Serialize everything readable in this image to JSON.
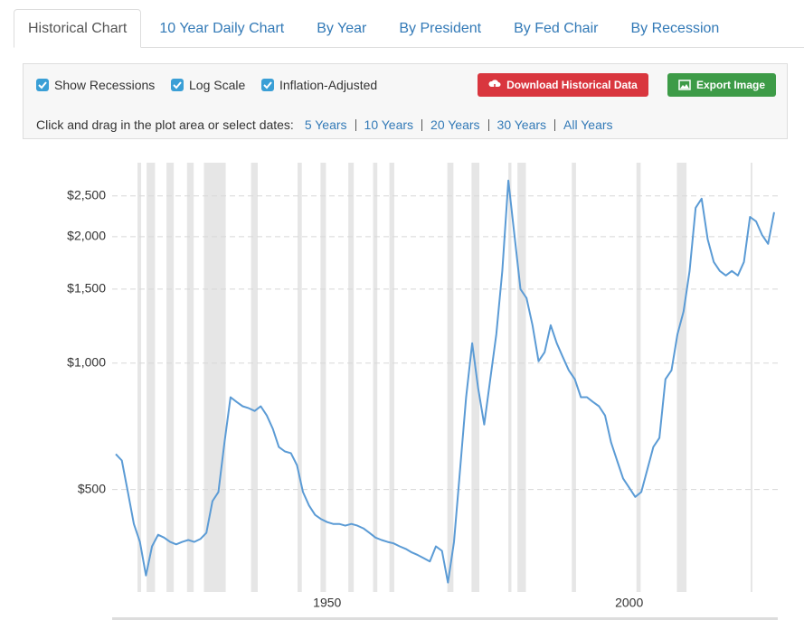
{
  "tabs": [
    "Historical Chart",
    "10 Year Daily Chart",
    "By Year",
    "By President",
    "By Fed Chair",
    "By Recession"
  ],
  "active_tab": 0,
  "options": [
    {
      "label": "Show Recessions",
      "checked": true
    },
    {
      "label": "Log Scale",
      "checked": true
    },
    {
      "label": "Inflation-Adjusted",
      "checked": true
    }
  ],
  "buttons": {
    "download": "Download Historical Data",
    "export": "Export Image"
  },
  "date_prompt": "Click and drag in the plot area or select dates:",
  "date_ranges": [
    "5 Years",
    "10 Years",
    "20 Years",
    "30 Years",
    "All Years"
  ],
  "chart_data": {
    "type": "line",
    "log_scale": true,
    "grid": true,
    "show_recessions": true,
    "series": [
      {
        "color": "#5b9bd5",
        "x": [
          1915,
          1916,
          1917,
          1918,
          1919,
          1920,
          1921,
          1922,
          1923,
          1924,
          1925,
          1926,
          1927,
          1928,
          1929,
          1930,
          1931,
          1932,
          1933,
          1934,
          1935,
          1936,
          1937,
          1938,
          1939,
          1940,
          1941,
          1942,
          1943,
          1944,
          1945,
          1946,
          1947,
          1948,
          1949,
          1950,
          1951,
          1952,
          1953,
          1954,
          1955,
          1956,
          1957,
          1958,
          1959,
          1960,
          1961,
          1962,
          1963,
          1964,
          1965,
          1966,
          1967,
          1968,
          1969,
          1970,
          1971,
          1972,
          1973,
          1974,
          1975,
          1976,
          1977,
          1978,
          1979,
          1980,
          1981,
          1982,
          1983,
          1984,
          1985,
          1986,
          1987,
          1988,
          1989,
          1990,
          1991,
          1992,
          1993,
          1994,
          1995,
          1996,
          1997,
          1998,
          1999,
          2000,
          2001,
          2002,
          2003,
          2004,
          2005,
          2006,
          2007,
          2008,
          2009,
          2010,
          2011,
          2012,
          2013,
          2014,
          2015,
          2016,
          2017,
          2018,
          2019,
          2020,
          2021,
          2022,
          2023,
          2024
        ],
        "values": [
          607,
          586,
          493,
          414,
          375,
          312,
          366,
          390,
          384,
          375,
          370,
          375,
          379,
          375,
          381,
          394,
          469,
          493,
          647,
          829,
          808,
          789,
          781,
          769,
          789,
          750,
          697,
          631,
          616,
          610,
          571,
          493,
          458,
          435,
          425,
          418,
          414,
          414,
          410,
          414,
          410,
          404,
          394,
          384,
          379,
          375,
          372,
          366,
          361,
          354,
          349,
          343,
          337,
          366,
          357,
          300,
          375,
          557,
          829,
          1115,
          871,
          714,
          915,
          1172,
          1657,
          2720,
          2019,
          1500,
          1428,
          1231,
          1010,
          1061,
          1231,
          1115,
          1035,
          961,
          915,
          829,
          829,
          808,
          789,
          750,
          647,
          586,
          531,
          505,
          480,
          493,
          557,
          631,
          663,
          915,
          961,
          1172,
          1326,
          1657,
          2343,
          2463,
          1972,
          1741,
          1657,
          1616,
          1657,
          1616,
          1741,
          2228,
          2175,
          2019,
          1922,
          2287
        ]
      }
    ],
    "recessions": [
      [
        1918.6,
        1919.2
      ],
      [
        1920.1,
        1921.5
      ],
      [
        1923.4,
        1924.6
      ],
      [
        1926.8,
        1927.9
      ],
      [
        1929.6,
        1933.2
      ],
      [
        1937.4,
        1938.5
      ],
      [
        1945.1,
        1945.8
      ],
      [
        1948.9,
        1949.8
      ],
      [
        1953.5,
        1954.4
      ],
      [
        1957.6,
        1958.3
      ],
      [
        1960.3,
        1961.1
      ],
      [
        1969.9,
        1970.9
      ],
      [
        1973.9,
        1975.2
      ],
      [
        1980.0,
        1980.5
      ],
      [
        1981.5,
        1982.9
      ],
      [
        1990.5,
        1991.2
      ],
      [
        2001.2,
        2001.9
      ],
      [
        2007.9,
        2009.5
      ],
      [
        2020.1,
        2020.4
      ]
    ],
    "xlim": [
      1914.4,
      2024.6
    ],
    "xticks": [
      1950,
      2000
    ],
    "ylim": [
      285,
      3000
    ],
    "yticks": [
      {
        "value": 500,
        "label": "$500"
      },
      {
        "value": 1000,
        "label": "$1,000"
      },
      {
        "value": 1500,
        "label": "$1,500"
      },
      {
        "value": 2000,
        "label": "$2,000"
      },
      {
        "value": 2500,
        "label": "$2,500"
      }
    ]
  }
}
